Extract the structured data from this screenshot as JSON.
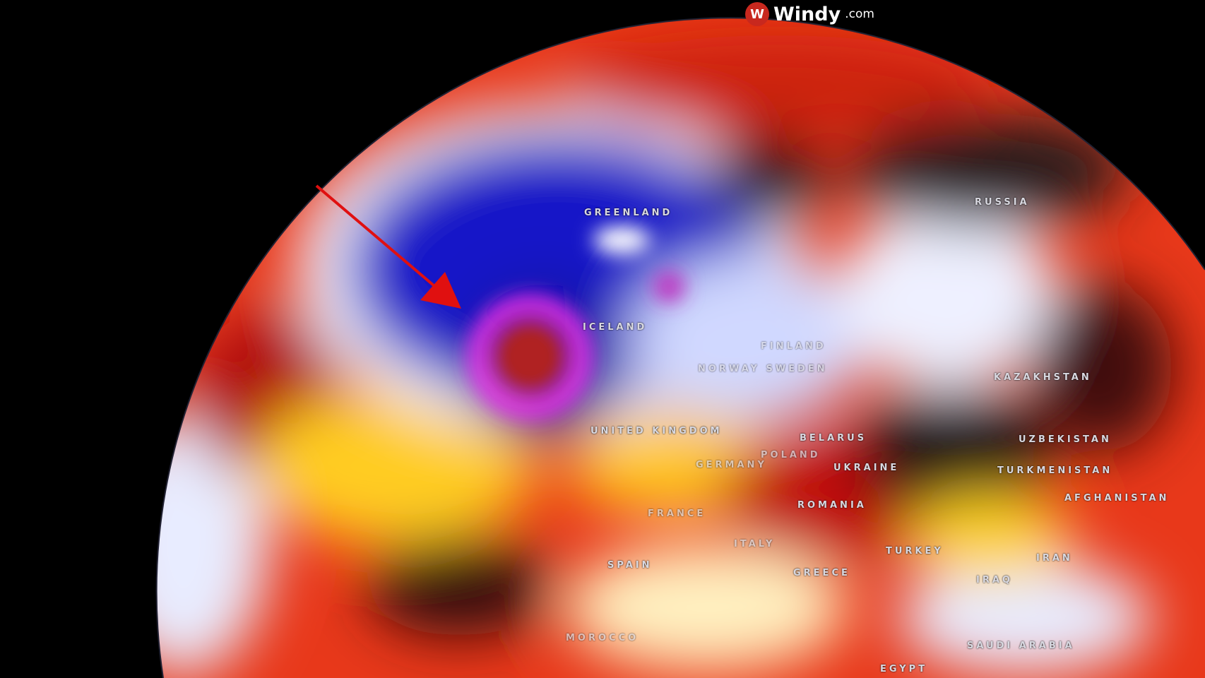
{
  "logo": {
    "name": "Windy",
    "domain": ".com",
    "icon": "windy-logo-icon",
    "color": "#c8281e"
  },
  "map": {
    "type": "globe-temperature-anomaly",
    "palette": {
      "cold": "#1a1ad0",
      "very_cold": "#e020e0",
      "neutral": "#f0f0ff",
      "warm": "#ffd21e",
      "hot": "#e0200a",
      "very_hot": "#2a1a1a"
    },
    "labels": [
      "GREENLAND",
      "RUSSIA",
      "ICELAND",
      "FINLAND",
      "NORWAY SWEDEN",
      "UNITED KINGDOM",
      "GERMANY",
      "POLAND",
      "BELARUS",
      "UKRAINE",
      "FRANCE",
      "ROMANIA",
      "ITALY",
      "SPAIN",
      "GREECE",
      "TURKEY",
      "MOROCCO",
      "IRAN",
      "IRAQ",
      "SAUDI ARABIA",
      "EGYPT",
      "KAZAKHSTAN",
      "UZBEKISTAN",
      "TURKMENISTAN",
      "AFGHANISTAN"
    ],
    "annotation": {
      "type": "arrow",
      "color": "#e01010",
      "target": "low-pressure-system-near-iceland"
    }
  }
}
